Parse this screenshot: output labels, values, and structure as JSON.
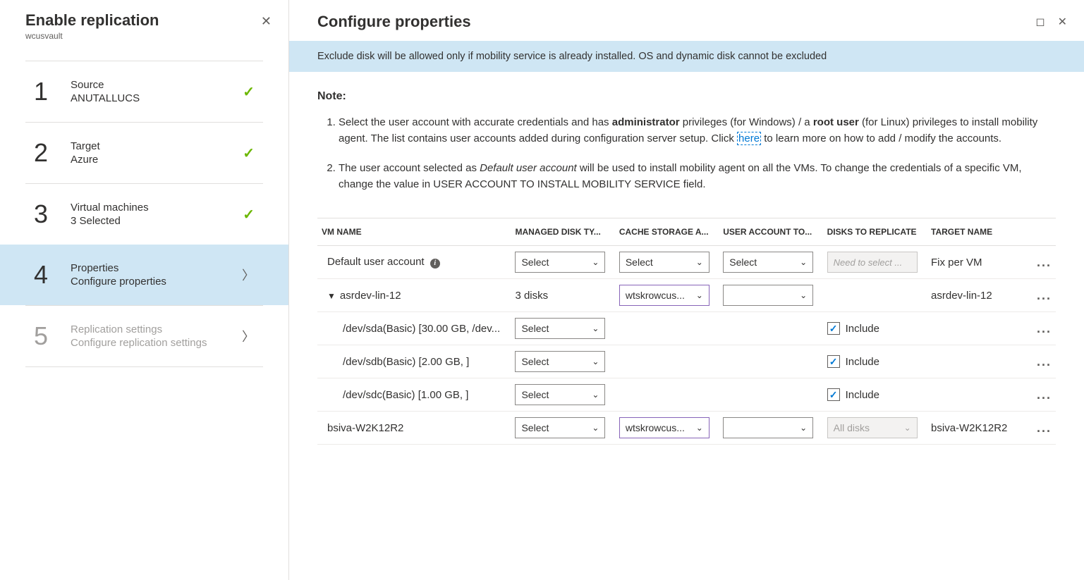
{
  "left": {
    "title": "Enable replication",
    "subtitle": "wcusvault",
    "steps": [
      {
        "num": "1",
        "title": "Source",
        "sub": "ANUTALLUCS",
        "status": "done"
      },
      {
        "num": "2",
        "title": "Target",
        "sub": "Azure",
        "status": "done"
      },
      {
        "num": "3",
        "title": "Virtual machines",
        "sub": "3 Selected",
        "status": "done"
      },
      {
        "num": "4",
        "title": "Properties",
        "sub": "Configure properties",
        "status": "active"
      },
      {
        "num": "5",
        "title": "Replication settings",
        "sub": "Configure replication settings",
        "status": "disabled"
      }
    ]
  },
  "right": {
    "title": "Configure properties",
    "banner": "Exclude disk will be allowed only if mobility service is already installed. OS and dynamic disk cannot be excluded",
    "note_label": "Note:",
    "note1_a": "Select the user account with accurate credentials and has ",
    "note1_admin": "administrator",
    "note1_b": " privileges (for Windows) / a ",
    "note1_root": "root user",
    "note1_c": " (for Linux) privileges to install mobility agent. The list contains user accounts added during configuration server setup. Click ",
    "note1_here": "here",
    "note1_d": " to learn more on how to add / modify the accounts.",
    "note2_a": "The user account selected as ",
    "note2_i": "Default user account",
    "note2_b": " will be used to install mobility agent on all the VMs. To change the credentials of a specific VM, change the value in USER ACCOUNT TO INSTALL MOBILITY SERVICE field.",
    "headers": {
      "vm": "VM NAME",
      "mdt": "MANAGED DISK TY...",
      "csa": "CACHE STORAGE A...",
      "uat": "USER ACCOUNT TO...",
      "dtr": "DISKS TO REPLICATE",
      "tn": "TARGET NAME"
    },
    "rows": {
      "default_label": "Default user account",
      "default_select": "Select",
      "default_needtosel": "Need to select ...",
      "default_target": "Fix per VM",
      "vm1_name": "asrdev-lin-12",
      "vm1_disks": "3 disks",
      "vm1_csa": "wtskrowcus...",
      "vm1_target": "asrdev-lin-12",
      "d1_name": "/dev/sda(Basic) [30.00 GB, /dev...",
      "d2_name": "/dev/sdb(Basic) [2.00 GB, ]",
      "d3_name": "/dev/sdc(Basic) [1.00 GB, ]",
      "include": "Include",
      "vm2_name": "bsiva-W2K12R2",
      "vm2_csa": "wtskrowcus...",
      "vm2_alldisks": "All disks",
      "vm2_target": "bsiva-W2K12R2",
      "select_ph": "Select"
    }
  }
}
